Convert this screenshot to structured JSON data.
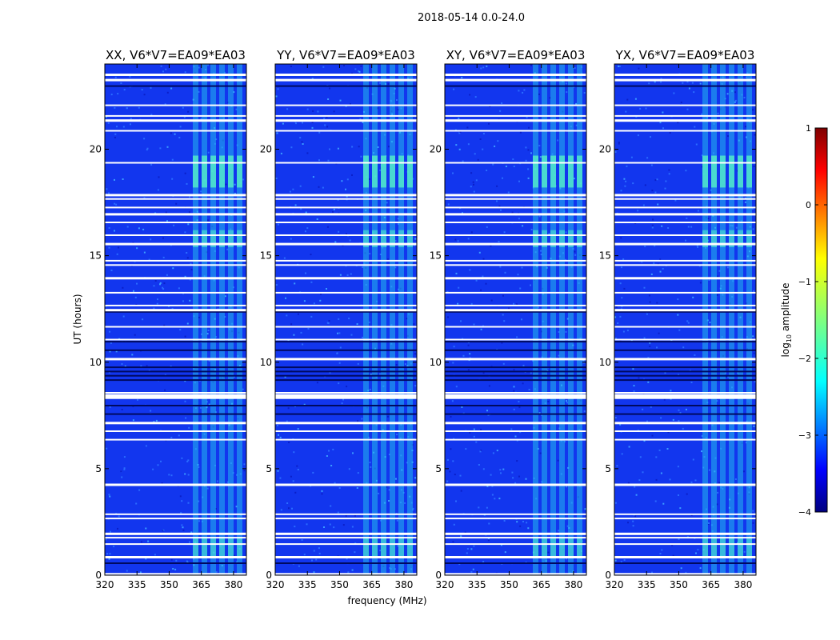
{
  "chart_data": {
    "type": "heatmap",
    "title": "2018-05-14 0.0-24.0",
    "xlabel": "frequency (MHz)",
    "ylabel": "UT (hours)",
    "xlim": [
      320,
      386
    ],
    "ylim": [
      0,
      24
    ],
    "xticks": [
      320,
      335,
      350,
      365,
      380
    ],
    "yticks": [
      0,
      5,
      10,
      15,
      20
    ],
    "rfi_band_mhz": [
      361,
      382
    ],
    "panels": [
      {
        "name": "XX",
        "title": "XX, V6*V7=EA09*EA03"
      },
      {
        "name": "YY",
        "title": "YY, V6*V7=EA09*EA03"
      },
      {
        "name": "XY",
        "title": "XY, V6*V7=EA09*EA03"
      },
      {
        "name": "YX",
        "title": "YX, V6*V7=EA09*EA03"
      }
    ],
    "colorbar": {
      "label": "log10 amplitude",
      "label_main": "log",
      "label_sub": "10",
      "label_rest": " amplitude",
      "range": [
        -4,
        1
      ],
      "ticks": [
        1,
        0,
        -1,
        -2,
        -3,
        -4
      ],
      "colormap": "jet"
    },
    "white_gaps_hours": [
      23.3,
      22.1,
      21.6,
      21.4,
      20.9,
      19.4,
      17.9,
      17.7,
      17.3,
      17.0,
      16.6,
      16.0,
      15.6,
      14.8,
      14.6,
      14.0,
      13.3,
      12.7,
      12.5,
      11.7,
      11.1,
      10.2,
      8.6,
      8.4,
      7.2,
      6.8,
      6.4,
      4.3,
      2.9,
      2.7,
      2.0,
      1.8,
      1.5,
      0.9,
      0.1
    ]
  }
}
